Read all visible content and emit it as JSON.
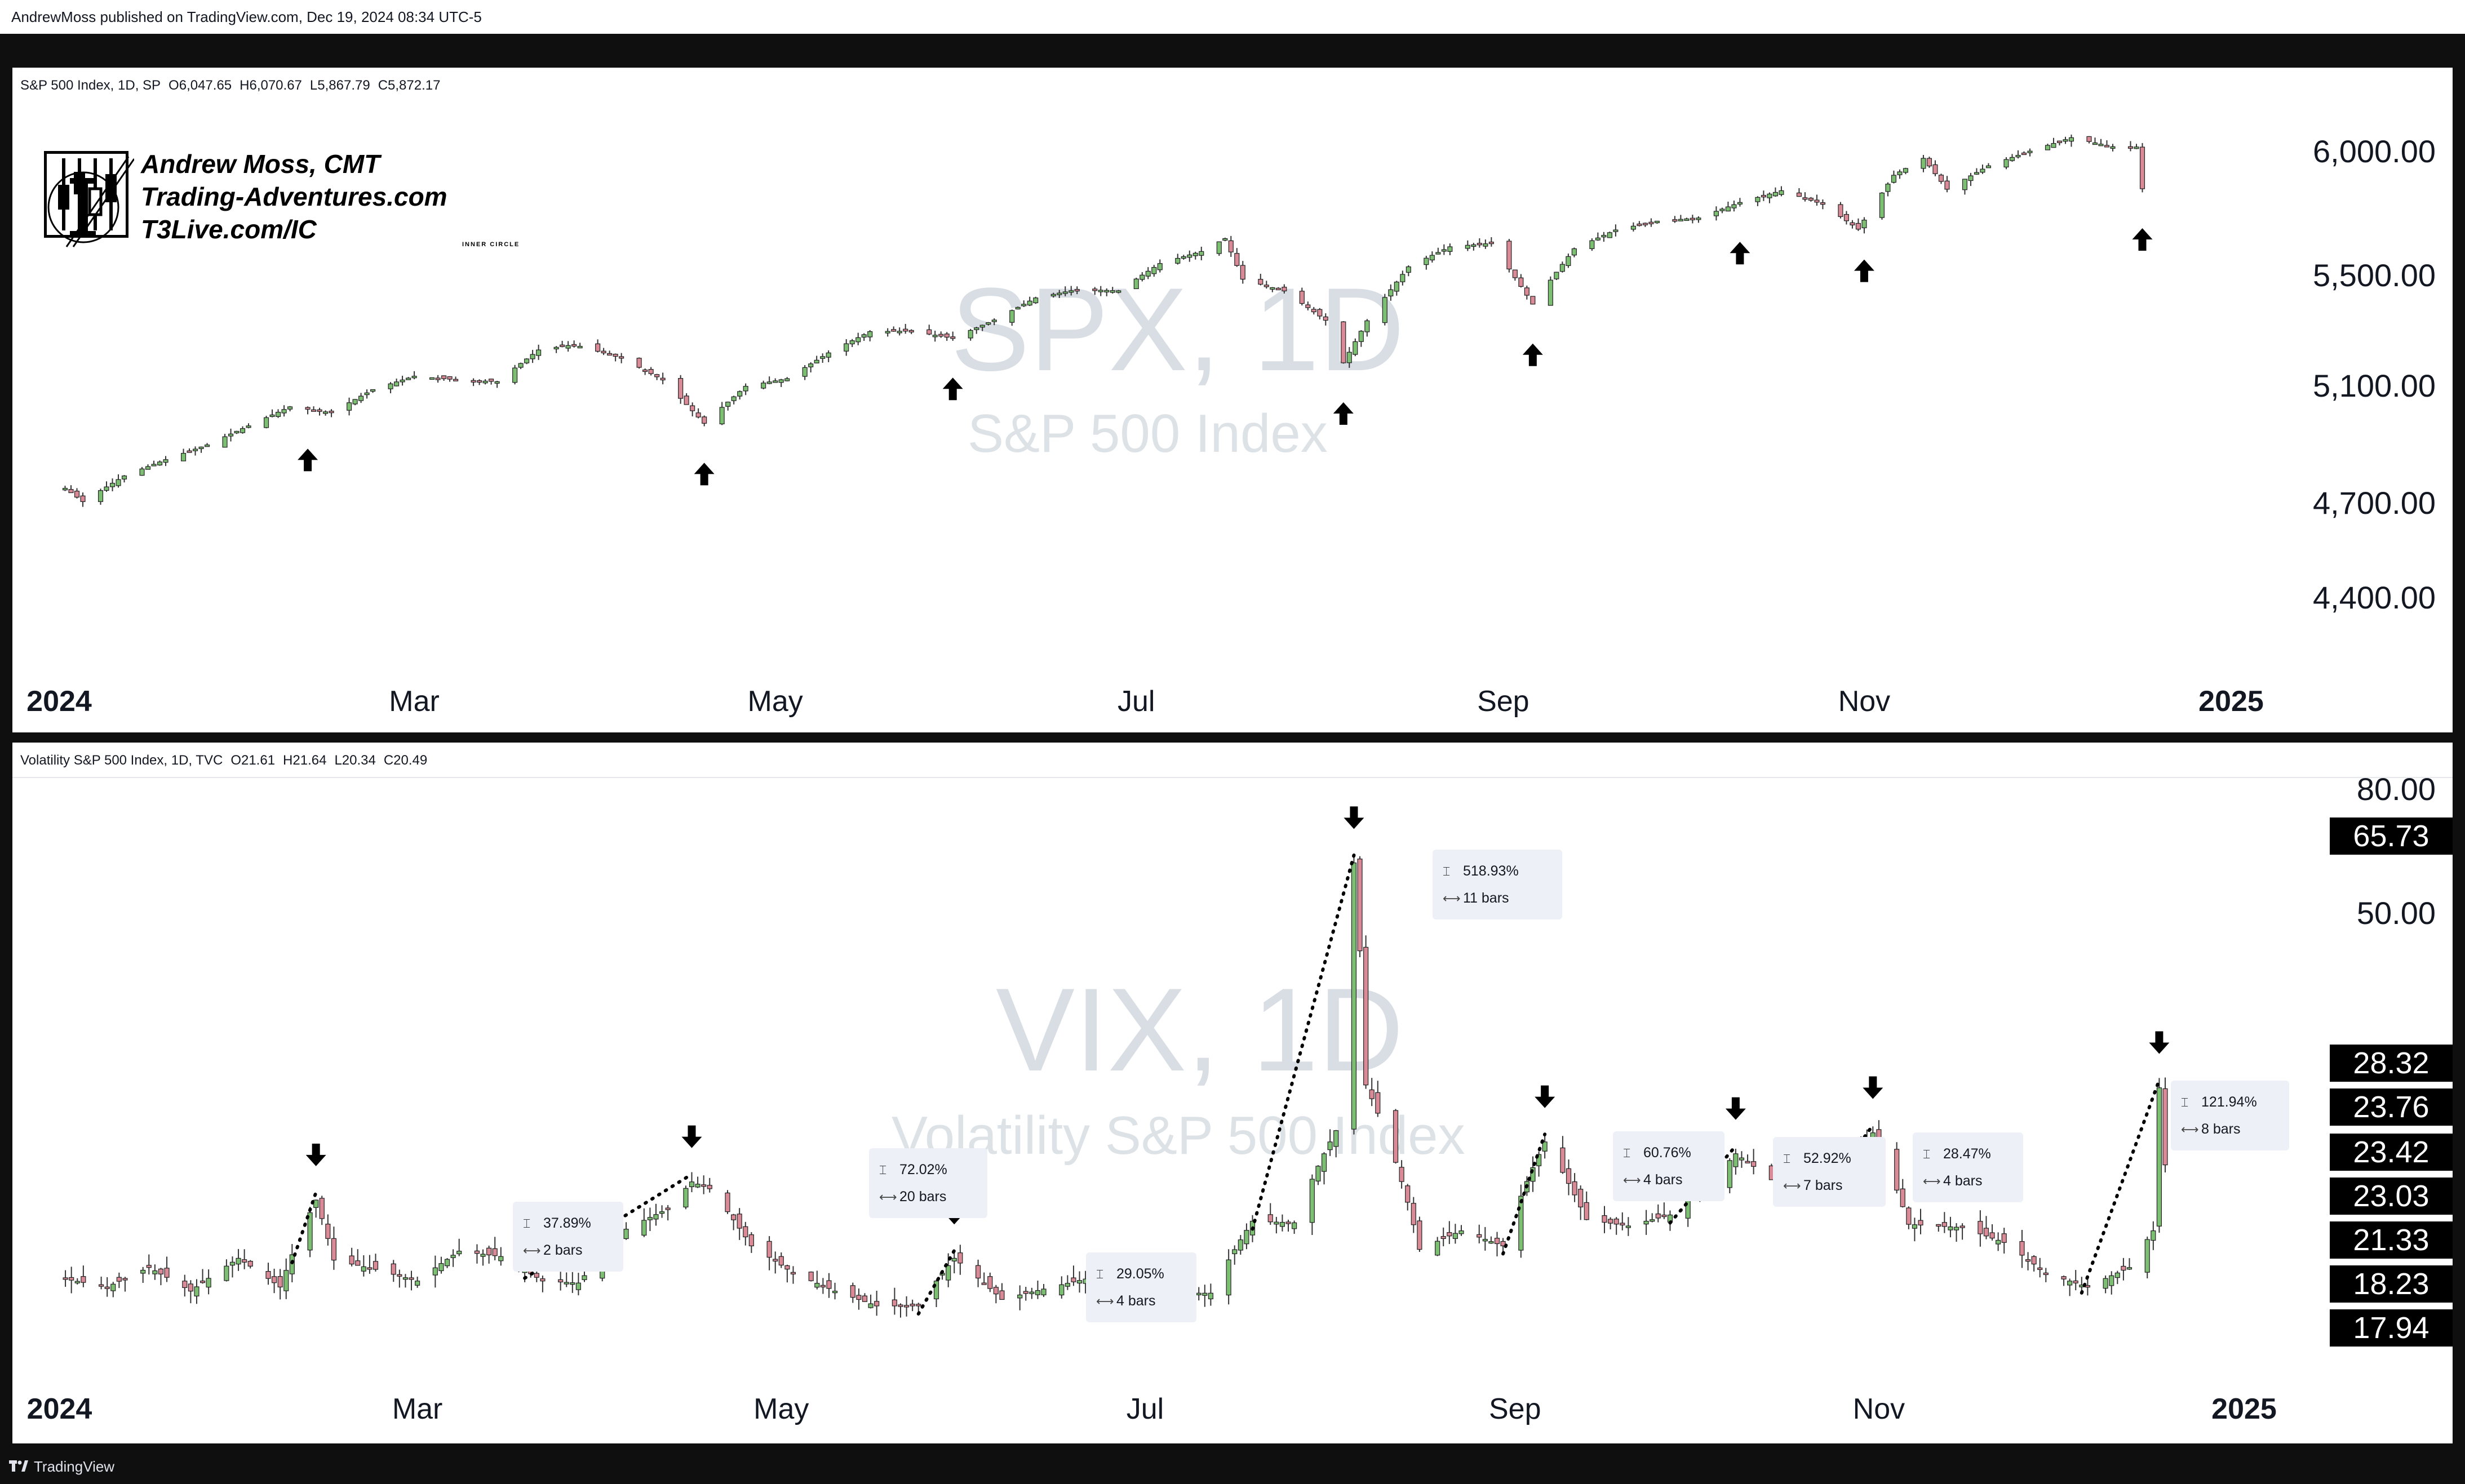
{
  "publisher_line": "AndrewMoss published on TradingView.com, Dec 19, 2024 08:34 UTC-5",
  "footer": {
    "brand": "TradingView"
  },
  "branding": {
    "lines": [
      "Andrew Moss, CMT",
      "Trading-Adventures.com",
      "T3Live.com/IC"
    ],
    "ic_label": "INNER CIRCLE",
    "logo_icon": "candlestick-logo-icon"
  },
  "spx": {
    "header": {
      "symbol": "S&P 500 Index, 1D, SP",
      "open": "O6,047.65",
      "high": "H6,070.67",
      "low": "L5,867.79",
      "close": "C5,872.17"
    },
    "watermark": "SPX, 1D",
    "watermark_sub": "S&P 500 Index",
    "price_labels": [
      "6,000.00",
      "5,500.00",
      "5,100.00",
      "4,700.00",
      "4,400.00"
    ],
    "time_labels": [
      "2024",
      "Mar",
      "May",
      "Jul",
      "Sep",
      "Nov",
      "2025"
    ],
    "arrow_color": "#000000"
  },
  "vix": {
    "header": {
      "symbol": "Volatility S&P 500 Index, 1D, TVC",
      "open": "O21.61",
      "high": "H21.64",
      "low": "L20.34",
      "close": "C20.49"
    },
    "watermark": "VIX, 1D",
    "watermark_sub": "Volatility S&P 500 Index",
    "price_labels": [
      "80.00",
      "50.00"
    ],
    "price_tags": [
      "65.73",
      "28.32",
      "23.76",
      "23.42",
      "23.03",
      "21.33",
      "18.23",
      "17.94"
    ],
    "time_labels": [
      "2024",
      "Mar",
      "May",
      "Jul",
      "Sep",
      "Nov",
      "2025"
    ],
    "measurements": [
      {
        "pct": "37.89%",
        "bars": "2 bars"
      },
      {
        "pct": "72.02%",
        "bars": "20 bars"
      },
      {
        "pct": "29.05%",
        "bars": "4 bars"
      },
      {
        "pct": "518.93%",
        "bars": "11 bars"
      },
      {
        "pct": "60.76%",
        "bars": "4 bars"
      },
      {
        "pct": "52.92%",
        "bars": "7 bars"
      },
      {
        "pct": "28.47%",
        "bars": "4 bars"
      },
      {
        "pct": "121.94%",
        "bars": "8 bars"
      }
    ]
  },
  "colors": {
    "up": "#7dbf72",
    "down": "#d98a96",
    "wick": "#333333"
  },
  "chart_data": [
    {
      "type": "candlestick",
      "title": "S&P 500 Index, 1D, SP",
      "ylim": [
        4300,
        6150
      ],
      "y_scale": "log",
      "x_ticks": [
        "2024",
        "Mar",
        "May",
        "Jul",
        "Sep",
        "Nov",
        "2025"
      ],
      "close_path": [
        [
          "2024-01-02",
          4742
        ],
        [
          "2024-01-05",
          4697
        ],
        [
          "2024-01-12",
          4784
        ],
        [
          "2024-01-19",
          4840
        ],
        [
          "2024-01-26",
          4891
        ],
        [
          "2024-02-02",
          4958
        ],
        [
          "2024-02-09",
          5026
        ],
        [
          "2024-02-16",
          5005
        ],
        [
          "2024-02-23",
          5088
        ],
        [
          "2024-03-01",
          5137
        ],
        [
          "2024-03-08",
          5124
        ],
        [
          "2024-03-15",
          5117
        ],
        [
          "2024-03-22",
          5234
        ],
        [
          "2024-03-28",
          5254
        ],
        [
          "2024-04-05",
          5204
        ],
        [
          "2024-04-12",
          5123
        ],
        [
          "2024-04-19",
          4967
        ],
        [
          "2024-04-26",
          5100
        ],
        [
          "2024-05-03",
          5128
        ],
        [
          "2024-05-10",
          5223
        ],
        [
          "2024-05-17",
          5303
        ],
        [
          "2024-05-24",
          5305
        ],
        [
          "2024-05-31",
          5278
        ],
        [
          "2024-06-07",
          5347
        ],
        [
          "2024-06-14",
          5432
        ],
        [
          "2024-06-21",
          5465
        ],
        [
          "2024-06-28",
          5460
        ],
        [
          "2024-07-05",
          5567
        ],
        [
          "2024-07-12",
          5615
        ],
        [
          "2024-07-16",
          5667
        ],
        [
          "2024-07-19",
          5505
        ],
        [
          "2024-07-26",
          5459
        ],
        [
          "2024-08-02",
          5346
        ],
        [
          "2024-08-05",
          5186
        ],
        [
          "2024-08-09",
          5344
        ],
        [
          "2024-08-16",
          5554
        ],
        [
          "2024-08-23",
          5634
        ],
        [
          "2024-08-30",
          5648
        ],
        [
          "2024-09-06",
          5408
        ],
        [
          "2024-09-13",
          5626
        ],
        [
          "2024-09-20",
          5702
        ],
        [
          "2024-09-27",
          5738
        ],
        [
          "2024-10-04",
          5751
        ],
        [
          "2024-10-11",
          5815
        ],
        [
          "2024-10-18",
          5864
        ],
        [
          "2024-10-25",
          5808
        ],
        [
          "2024-10-31",
          5705
        ],
        [
          "2024-11-06",
          5929
        ],
        [
          "2024-11-11",
          6001
        ],
        [
          "2024-11-15",
          5870
        ],
        [
          "2024-11-22",
          5969
        ],
        [
          "2024-11-29",
          6032
        ],
        [
          "2024-12-06",
          6090
        ],
        [
          "2024-12-13",
          6051
        ],
        [
          "2024-12-17",
          6050
        ],
        [
          "2024-12-18",
          5872
        ]
      ],
      "arrow_dates": [
        "2024-02-12",
        "2024-04-19",
        "2024-05-31",
        "2024-08-05",
        "2024-09-06",
        "2024-10-11",
        "2024-11-01",
        "2024-12-18"
      ]
    },
    {
      "type": "candlestick",
      "title": "Volatility S&P 500 Index, 1D, TVC",
      "ylim": [
        10,
        85
      ],
      "y_scale": "log",
      "x_ticks": [
        "2024",
        "Mar",
        "May",
        "Jul",
        "Sep",
        "Nov",
        "2025"
      ],
      "close_path": [
        [
          "2024-01-02",
          13.2
        ],
        [
          "2024-01-09",
          12.8
        ],
        [
          "2024-01-16",
          13.8
        ],
        [
          "2024-01-23",
          12.6
        ],
        [
          "2024-01-31",
          14.3
        ],
        [
          "2024-02-07",
          12.8
        ],
        [
          "2024-02-13",
          17.9
        ],
        [
          "2024-02-16",
          14.2
        ],
        [
          "2024-02-23",
          13.7
        ],
        [
          "2024-03-01",
          13.1
        ],
        [
          "2024-03-08",
          14.7
        ],
        [
          "2024-03-15",
          14.4
        ],
        [
          "2024-03-22",
          13.1
        ],
        [
          "2024-03-28",
          13.0
        ],
        [
          "2024-04-05",
          16.0
        ],
        [
          "2024-04-12",
          17.3
        ],
        [
          "2024-04-16",
          19.2
        ],
        [
          "2024-04-19",
          18.7
        ],
        [
          "2024-04-26",
          15.0
        ],
        [
          "2024-05-03",
          13.5
        ],
        [
          "2024-05-10",
          12.6
        ],
        [
          "2024-05-17",
          11.9
        ],
        [
          "2024-05-24",
          11.9
        ],
        [
          "2024-05-30",
          14.3
        ],
        [
          "2024-06-07",
          12.2
        ],
        [
          "2024-06-14",
          12.7
        ],
        [
          "2024-06-21",
          13.2
        ],
        [
          "2024-06-28",
          12.4
        ],
        [
          "2024-07-05",
          12.5
        ],
        [
          "2024-07-12",
          12.5
        ],
        [
          "2024-07-19",
          16.5
        ],
        [
          "2024-07-26",
          16.4
        ],
        [
          "2024-08-02",
          23.4
        ],
        [
          "2024-08-05",
          65.7
        ],
        [
          "2024-08-07",
          27.9
        ],
        [
          "2024-08-12",
          20.7
        ],
        [
          "2024-08-16",
          14.8
        ],
        [
          "2024-08-23",
          15.9
        ],
        [
          "2024-08-30",
          15.0
        ],
        [
          "2024-09-06",
          22.4
        ],
        [
          "2024-09-13",
          16.6
        ],
        [
          "2024-09-20",
          16.2
        ],
        [
          "2024-09-27",
          16.9
        ],
        [
          "2024-10-04",
          19.2
        ],
        [
          "2024-10-08",
          21.4
        ],
        [
          "2024-10-18",
          18.0
        ],
        [
          "2024-10-25",
          20.3
        ],
        [
          "2024-10-31",
          23.2
        ],
        [
          "2024-11-06",
          16.3
        ],
        [
          "2024-11-15",
          16.1
        ],
        [
          "2024-11-22",
          15.2
        ],
        [
          "2024-11-29",
          13.5
        ],
        [
          "2024-12-06",
          12.8
        ],
        [
          "2024-12-13",
          13.8
        ],
        [
          "2024-12-17",
          15.9
        ],
        [
          "2024-12-18",
          27.6
        ],
        [
          "2024-12-19",
          20.5
        ]
      ],
      "arrow_dates": [
        "2024-02-13",
        "2024-04-16",
        "2024-05-30",
        "2024-08-05",
        "2024-09-06",
        "2024-10-08",
        "2024-10-31",
        "2024-12-18"
      ],
      "moves": [
        {
          "from": "2024-02-09",
          "to": "2024-02-13",
          "pct": 37.89,
          "bars": 2
        },
        {
          "from": "2024-03-19",
          "to": "2024-04-16",
          "pct": 72.02,
          "bars": 20
        },
        {
          "from": "2024-05-24",
          "to": "2024-05-30",
          "pct": 29.05,
          "bars": 4
        },
        {
          "from": "2024-07-19",
          "to": "2024-08-05",
          "pct": 518.93,
          "bars": 11
        },
        {
          "from": "2024-08-30",
          "to": "2024-09-06",
          "pct": 60.76,
          "bars": 4
        },
        {
          "from": "2024-09-27",
          "to": "2024-10-08",
          "pct": 52.92,
          "bars": 7
        },
        {
          "from": "2024-10-25",
          "to": "2024-10-31",
          "pct": 28.47,
          "bars": 4
        },
        {
          "from": "2024-12-05",
          "to": "2024-12-18",
          "pct": 121.94,
          "bars": 8
        }
      ]
    }
  ]
}
